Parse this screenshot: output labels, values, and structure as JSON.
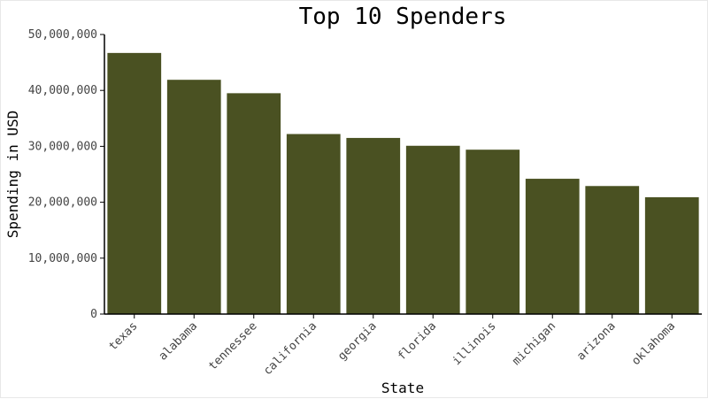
{
  "chart_data": {
    "type": "bar",
    "title": "Top 10 Spenders",
    "xlabel": "State",
    "ylabel": "Spending in USD",
    "categories": [
      "texas",
      "alabama",
      "tennessee",
      "california",
      "georgia",
      "florida",
      "illinois",
      "michigan",
      "arizona",
      "oklahoma"
    ],
    "values": [
      46700000,
      41900000,
      39500000,
      32200000,
      31500000,
      30100000,
      29400000,
      24200000,
      22900000,
      20900000
    ],
    "ylim": [
      0,
      50000000
    ],
    "yticks": [
      0,
      10000000,
      20000000,
      30000000,
      40000000,
      50000000
    ],
    "ytick_labels": [
      "0",
      "10,000,000",
      "20,000,000",
      "30,000,000",
      "40,000,000",
      "50,000,000"
    ],
    "bar_color": "#4a5122",
    "grid": false,
    "legend": "none"
  }
}
